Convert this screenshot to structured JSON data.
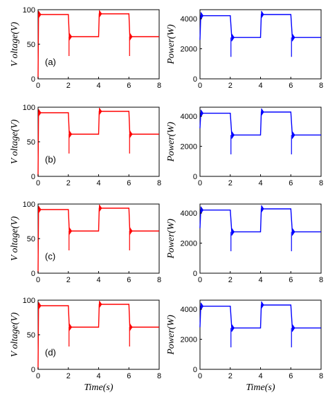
{
  "chart_data": [
    {
      "panel_label": "(a)",
      "ylabel": "V oltage(V)",
      "xlabel": "",
      "ytick_labels": [
        "0",
        "50",
        "100"
      ],
      "ylim": [
        0,
        100
      ],
      "xlim": [
        0,
        8
      ],
      "xtick_labels": [
        "0",
        "2",
        "4",
        "6",
        "8"
      ],
      "series": [
        {
          "color": "#ff0000",
          "x": [
            0,
            0.03,
            2,
            2.06,
            4,
            4.04,
            6,
            6.06,
            8
          ],
          "y": [
            0,
            93,
            93,
            61,
            61,
            94,
            94,
            61,
            61
          ]
        }
      ]
    },
    {
      "panel_label": "",
      "ylabel": "Power(W)",
      "xlabel": "",
      "ytick_labels": [
        "0",
        "2000",
        "4000"
      ],
      "ylim": [
        0,
        4600
      ],
      "xlim": [
        0,
        8
      ],
      "xtick_labels": [
        "0",
        "2",
        "4",
        "6",
        "8"
      ],
      "series": [
        {
          "color": "#0000ff",
          "x": [
            0,
            0.05,
            2,
            2.1,
            4,
            4.05,
            6,
            6.1,
            8
          ],
          "y": [
            2600,
            4200,
            4200,
            2750,
            2750,
            4280,
            4280,
            2750,
            2750
          ]
        }
      ]
    },
    {
      "panel_label": "(b)",
      "ylabel": "V oltage(V)",
      "xlabel": "",
      "ytick_labels": [
        "0",
        "50",
        "100"
      ],
      "ylim": [
        0,
        100
      ],
      "xlim": [
        0,
        8
      ],
      "xtick_labels": [
        "0",
        "2",
        "4",
        "6",
        "8"
      ],
      "series": [
        {
          "color": "#ff0000",
          "x": [
            0,
            0.03,
            2,
            2.06,
            4,
            4.04,
            6,
            6.06,
            8
          ],
          "y": [
            0,
            92,
            92,
            61,
            61,
            94,
            94,
            61,
            61
          ]
        }
      ]
    },
    {
      "panel_label": "",
      "ylabel": "Power(W)",
      "xlabel": "",
      "ytick_labels": [
        "0",
        "2000",
        "4000"
      ],
      "ylim": [
        0,
        4600
      ],
      "xlim": [
        0,
        8
      ],
      "xtick_labels": [
        "0",
        "2",
        "4",
        "6",
        "8"
      ],
      "series": [
        {
          "color": "#0000ff",
          "x": [
            0,
            0.05,
            2,
            2.1,
            4,
            4.05,
            6,
            6.1,
            8
          ],
          "y": [
            3200,
            4200,
            4200,
            2750,
            2750,
            4280,
            4280,
            2750,
            2750
          ]
        }
      ]
    },
    {
      "panel_label": "(c)",
      "ylabel": "V oltage(V)",
      "xlabel": "",
      "ytick_labels": [
        "0",
        "50",
        "100"
      ],
      "ylim": [
        0,
        100
      ],
      "xlim": [
        0,
        8
      ],
      "xtick_labels": [
        "0",
        "2",
        "4",
        "6",
        "8"
      ],
      "series": [
        {
          "color": "#ff0000",
          "x": [
            0,
            0.03,
            2,
            2.06,
            4,
            4.04,
            6,
            6.06,
            8
          ],
          "y": [
            0,
            92,
            92,
            61,
            61,
            94,
            94,
            61,
            61
          ]
        }
      ]
    },
    {
      "panel_label": "",
      "ylabel": "Power(W)",
      "xlabel": "",
      "ytick_labels": [
        "0",
        "2000",
        "4000"
      ],
      "ylim": [
        0,
        4600
      ],
      "xlim": [
        0,
        8
      ],
      "xtick_labels": [
        "0",
        "2",
        "4",
        "6",
        "8"
      ],
      "series": [
        {
          "color": "#0000ff",
          "x": [
            0,
            0.05,
            2,
            2.1,
            4,
            4.05,
            6,
            6.1,
            8
          ],
          "y": [
            3000,
            4200,
            4200,
            2750,
            2750,
            4280,
            4280,
            2750,
            2750
          ]
        }
      ]
    },
    {
      "panel_label": "(d)",
      "ylabel": "V oltage(V)",
      "xlabel": "Time(s)",
      "ytick_labels": [
        "0",
        "50",
        "100"
      ],
      "ylim": [
        0,
        100
      ],
      "xlim": [
        0,
        8
      ],
      "xtick_labels": [
        "0",
        "2",
        "4",
        "6",
        "8"
      ],
      "series": [
        {
          "color": "#ff0000",
          "x": [
            0,
            0.03,
            2,
            2.06,
            4,
            4.04,
            6,
            6.06,
            8
          ],
          "y": [
            0,
            92,
            92,
            61,
            61,
            94,
            94,
            61,
            61
          ]
        }
      ]
    },
    {
      "panel_label": "",
      "ylabel": "Power(W)",
      "xlabel": "Time(s)",
      "ytick_labels": [
        "0",
        "2000",
        "4000"
      ],
      "ylim": [
        0,
        4600
      ],
      "xlim": [
        0,
        8
      ],
      "xtick_labels": [
        "0",
        "2",
        "4",
        "6",
        "8"
      ],
      "series": [
        {
          "color": "#0000ff",
          "x": [
            0,
            0.05,
            2,
            2.1,
            4,
            4.05,
            6,
            6.1,
            8
          ],
          "y": [
            2800,
            4200,
            4200,
            2750,
            2750,
            4280,
            4280,
            2750,
            2750
          ]
        }
      ]
    }
  ]
}
